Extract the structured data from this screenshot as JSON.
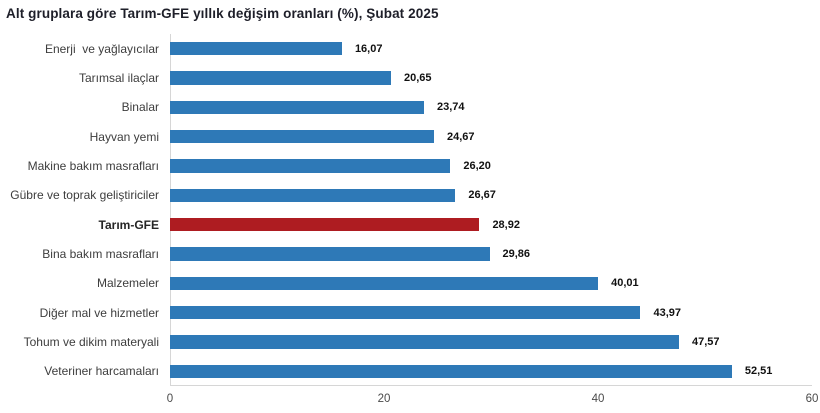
{
  "title": "Alt gruplara göre Tarım-GFE yıllık değişim oranları (%), Şubat 2025",
  "chart_data": {
    "type": "bar",
    "orientation": "horizontal",
    "title": "Alt gruplara göre Tarım-GFE yıllık değişim oranları (%), Şubat 2025",
    "categories": [
      "Enerji  ve yağlayıcılar",
      "Tarımsal ilaçlar",
      "Binalar",
      "Hayvan yemi",
      "Makine bakım masrafları",
      "Gübre ve toprak geliştiriciler",
      "Tarım-GFE",
      "Bina bakım masrafları",
      "Malzemeler",
      "Diğer mal ve hizmetler",
      "Tohum ve dikim materyali",
      "Veteriner harcamaları"
    ],
    "values": [
      16.07,
      20.65,
      23.74,
      24.67,
      26.2,
      26.67,
      28.92,
      29.86,
      40.01,
      43.97,
      47.57,
      52.51
    ],
    "value_labels": [
      "16,07",
      "20,65",
      "23,74",
      "24,67",
      "26,20",
      "26,67",
      "28,92",
      "29,86",
      "40,01",
      "43,97",
      "47,57",
      "52,51"
    ],
    "highlight_index": 6,
    "highlight_category": "Tarım-GFE",
    "bar_color": "#2e79b7",
    "highlight_color": "#ae1c21",
    "axis_line_color": "#d6d6d6",
    "xlabel": "",
    "ylabel": "",
    "xlim": [
      0,
      60
    ],
    "x_ticks": [
      "0",
      "20",
      "40",
      "60"
    ],
    "grid": "off",
    "legend": "none"
  }
}
